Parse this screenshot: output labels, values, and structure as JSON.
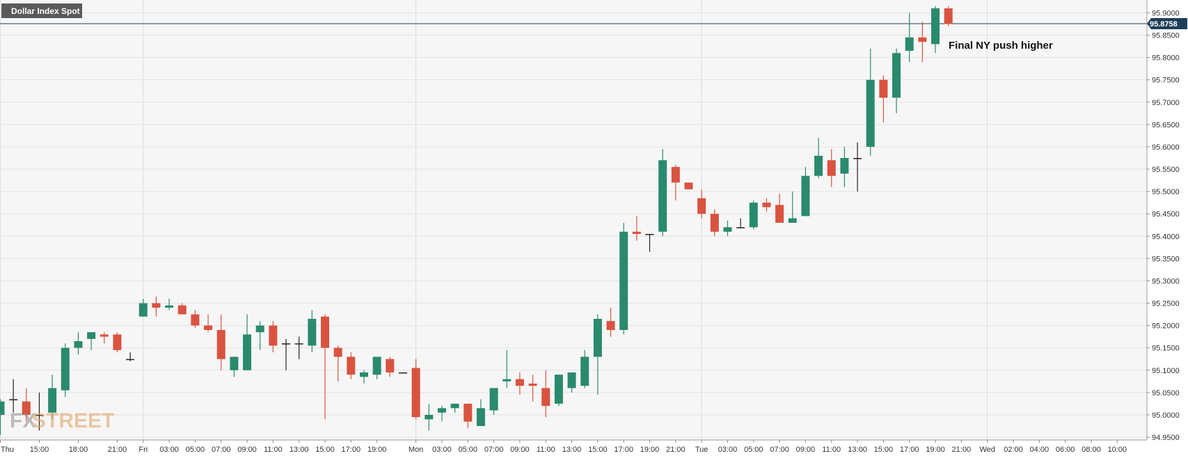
{
  "symbol_label": "Dollar Index Spot",
  "current_price_label": "95.8758",
  "annotation": "Final NY push higher",
  "watermark": {
    "fx": "FX",
    "street": "STREET"
  },
  "colors": {
    "up": "#2a8a6e",
    "down": "#d9533f",
    "doji": "#222222",
    "price_line": "#1e3f5a",
    "panel_bg": "#f6f6f6"
  },
  "chart_data": {
    "type": "candlestick",
    "ylim": [
      94.95,
      95.91
    ],
    "current_price": 95.8758,
    "y_ticks": [
      "94.9500",
      "95.0000",
      "95.0500",
      "95.1000",
      "95.1500",
      "95.2000",
      "95.2500",
      "95.3000",
      "95.3500",
      "95.4000",
      "95.4500",
      "95.5000",
      "95.5500",
      "95.6000",
      "95.6500",
      "95.7000",
      "95.7500",
      "95.8000",
      "95.8500",
      "95.9000"
    ],
    "x_ticks": [
      {
        "label": "Thu",
        "i": 0
      },
      {
        "label": "15:00",
        "i": 3
      },
      {
        "label": "18:00",
        "i": 6
      },
      {
        "label": "21:00",
        "i": 9
      },
      {
        "label": "Fri",
        "i": 11
      },
      {
        "label": "03:00",
        "i": 13
      },
      {
        "label": "05:00",
        "i": 15
      },
      {
        "label": "07:00",
        "i": 17
      },
      {
        "label": "09:00",
        "i": 19
      },
      {
        "label": "11:00",
        "i": 21
      },
      {
        "label": "13:00",
        "i": 23
      },
      {
        "label": "15:00",
        "i": 25
      },
      {
        "label": "17:00",
        "i": 27
      },
      {
        "label": "19:00",
        "i": 29
      },
      {
        "label": "Mon",
        "i": 32
      },
      {
        "label": "03:00",
        "i": 34
      },
      {
        "label": "05:00",
        "i": 36
      },
      {
        "label": "07:00",
        "i": 38
      },
      {
        "label": "09:00",
        "i": 40
      },
      {
        "label": "11:00",
        "i": 42
      },
      {
        "label": "13:00",
        "i": 44
      },
      {
        "label": "15:00",
        "i": 46
      },
      {
        "label": "17:00",
        "i": 48
      },
      {
        "label": "19:00",
        "i": 50
      },
      {
        "label": "21:00",
        "i": 52
      },
      {
        "label": "Tue",
        "i": 54
      },
      {
        "label": "03:00",
        "i": 56
      },
      {
        "label": "05:00",
        "i": 58
      },
      {
        "label": "07:00",
        "i": 60
      },
      {
        "label": "09:00",
        "i": 62
      },
      {
        "label": "11:00",
        "i": 64
      },
      {
        "label": "13:00",
        "i": 66
      },
      {
        "label": "15:00",
        "i": 68
      },
      {
        "label": "17:00",
        "i": 70
      },
      {
        "label": "19:00",
        "i": 72
      },
      {
        "label": "21:00",
        "i": 74
      },
      {
        "label": "Wed",
        "i": 76
      },
      {
        "label": "02:00",
        "i": 78
      },
      {
        "label": "04:00",
        "i": 80
      },
      {
        "label": "06:00",
        "i": 82
      },
      {
        "label": "08:00",
        "i": 84
      },
      {
        "label": "10:00",
        "i": 86
      }
    ],
    "vertical_grid": [
      0,
      11,
      32,
      54,
      76
    ],
    "candles": [
      {
        "o": 95.0,
        "h": 95.035,
        "l": 94.955,
        "c": 95.03
      },
      {
        "o": 95.035,
        "h": 95.08,
        "l": 95.005,
        "c": 95.035
      },
      {
        "o": 95.03,
        "h": 95.06,
        "l": 94.985,
        "c": 95.0
      },
      {
        "o": 95.0,
        "h": 95.05,
        "l": 94.965,
        "c": 95.0
      },
      {
        "o": 95.005,
        "h": 95.09,
        "l": 94.99,
        "c": 95.06
      },
      {
        "o": 95.055,
        "h": 95.16,
        "l": 95.04,
        "c": 95.15
      },
      {
        "o": 95.15,
        "h": 95.185,
        "l": 95.135,
        "c": 95.165
      },
      {
        "o": 95.17,
        "h": 95.185,
        "l": 95.145,
        "c": 95.185
      },
      {
        "o": 95.18,
        "h": 95.185,
        "l": 95.16,
        "c": 95.175
      },
      {
        "o": 95.18,
        "h": 95.185,
        "l": 95.14,
        "c": 95.145
      },
      {
        "o": 95.125,
        "h": 95.14,
        "l": 95.12,
        "c": 95.125
      },
      {
        "o": 95.22,
        "h": 95.26,
        "l": 95.22,
        "c": 95.25
      },
      {
        "o": 95.25,
        "h": 95.265,
        "l": 95.22,
        "c": 95.24
      },
      {
        "o": 95.24,
        "h": 95.26,
        "l": 95.235,
        "c": 95.245
      },
      {
        "o": 95.245,
        "h": 95.25,
        "l": 95.225,
        "c": 95.225
      },
      {
        "o": 95.225,
        "h": 95.235,
        "l": 95.195,
        "c": 95.2
      },
      {
        "o": 95.2,
        "h": 95.225,
        "l": 95.185,
        "c": 95.19
      },
      {
        "o": 95.19,
        "h": 95.225,
        "l": 95.1,
        "c": 95.125
      },
      {
        "o": 95.1,
        "h": 95.13,
        "l": 95.085,
        "c": 95.13
      },
      {
        "o": 95.1,
        "h": 95.225,
        "l": 95.1,
        "c": 95.18
      },
      {
        "o": 95.185,
        "h": 95.21,
        "l": 95.145,
        "c": 95.2
      },
      {
        "o": 95.2,
        "h": 95.21,
        "l": 95.14,
        "c": 95.155
      },
      {
        "o": 95.16,
        "h": 95.17,
        "l": 95.1,
        "c": 95.16
      },
      {
        "o": 95.16,
        "h": 95.175,
        "l": 95.125,
        "c": 95.16
      },
      {
        "o": 95.155,
        "h": 95.235,
        "l": 95.14,
        "c": 95.215
      },
      {
        "o": 95.22,
        "h": 95.225,
        "l": 94.99,
        "c": 95.15
      },
      {
        "o": 95.15,
        "h": 95.155,
        "l": 95.075,
        "c": 95.13
      },
      {
        "o": 95.13,
        "h": 95.14,
        "l": 95.08,
        "c": 95.09
      },
      {
        "o": 95.085,
        "h": 95.1,
        "l": 95.07,
        "c": 95.095
      },
      {
        "o": 95.09,
        "h": 95.13,
        "l": 95.08,
        "c": 95.13
      },
      {
        "o": 95.125,
        "h": 95.13,
        "l": 95.085,
        "c": 95.095
      },
      {
        "o": 95.095,
        "h": 95.095,
        "l": 95.095,
        "c": 95.095
      },
      {
        "o": 95.105,
        "h": 95.125,
        "l": 94.99,
        "c": 94.995
      },
      {
        "o": 94.99,
        "h": 95.025,
        "l": 94.965,
        "c": 95.0
      },
      {
        "o": 95.005,
        "h": 95.02,
        "l": 94.985,
        "c": 95.015
      },
      {
        "o": 95.015,
        "h": 95.025,
        "l": 95.005,
        "c": 95.025
      },
      {
        "o": 95.025,
        "h": 95.025,
        "l": 94.97,
        "c": 94.985
      },
      {
        "o": 94.975,
        "h": 95.035,
        "l": 94.975,
        "c": 95.015
      },
      {
        "o": 95.01,
        "h": 95.06,
        "l": 95.0,
        "c": 95.06
      },
      {
        "o": 95.075,
        "h": 95.145,
        "l": 95.06,
        "c": 95.08
      },
      {
        "o": 95.08,
        "h": 95.095,
        "l": 95.045,
        "c": 95.065
      },
      {
        "o": 95.07,
        "h": 95.09,
        "l": 95.03,
        "c": 95.065
      },
      {
        "o": 95.06,
        "h": 95.1,
        "l": 94.995,
        "c": 95.02
      },
      {
        "o": 95.025,
        "h": 95.09,
        "l": 95.02,
        "c": 95.09
      },
      {
        "o": 95.06,
        "h": 95.095,
        "l": 95.05,
        "c": 95.095
      },
      {
        "o": 95.065,
        "h": 95.145,
        "l": 95.06,
        "c": 95.13
      },
      {
        "o": 95.13,
        "h": 95.225,
        "l": 95.045,
        "c": 95.215
      },
      {
        "o": 95.21,
        "h": 95.24,
        "l": 95.175,
        "c": 95.19
      },
      {
        "o": 95.19,
        "h": 95.43,
        "l": 95.18,
        "c": 95.41
      },
      {
        "o": 95.41,
        "h": 95.445,
        "l": 95.39,
        "c": 95.405
      },
      {
        "o": 95.405,
        "h": 95.405,
        "l": 95.365,
        "c": 95.405
      },
      {
        "o": 95.41,
        "h": 95.595,
        "l": 95.4,
        "c": 95.57
      },
      {
        "o": 95.555,
        "h": 95.56,
        "l": 95.48,
        "c": 95.52
      },
      {
        "o": 95.52,
        "h": 95.52,
        "l": 95.505,
        "c": 95.505
      },
      {
        "o": 95.485,
        "h": 95.505,
        "l": 95.44,
        "c": 95.45
      },
      {
        "o": 95.45,
        "h": 95.46,
        "l": 95.4,
        "c": 95.41
      },
      {
        "o": 95.41,
        "h": 95.435,
        "l": 95.4,
        "c": 95.42
      },
      {
        "o": 95.42,
        "h": 95.44,
        "l": 95.42,
        "c": 95.42
      },
      {
        "o": 95.42,
        "h": 95.48,
        "l": 95.415,
        "c": 95.475
      },
      {
        "o": 95.475,
        "h": 95.485,
        "l": 95.455,
        "c": 95.465
      },
      {
        "o": 95.47,
        "h": 95.495,
        "l": 95.43,
        "c": 95.43
      },
      {
        "o": 95.43,
        "h": 95.5,
        "l": 95.43,
        "c": 95.44
      },
      {
        "o": 95.445,
        "h": 95.555,
        "l": 95.445,
        "c": 95.535
      },
      {
        "o": 95.535,
        "h": 95.62,
        "l": 95.53,
        "c": 95.58
      },
      {
        "o": 95.57,
        "h": 95.595,
        "l": 95.51,
        "c": 95.535
      },
      {
        "o": 95.54,
        "h": 95.6,
        "l": 95.51,
        "c": 95.575
      },
      {
        "o": 95.575,
        "h": 95.61,
        "l": 95.5,
        "c": 95.575
      },
      {
        "o": 95.6,
        "h": 95.82,
        "l": 95.58,
        "c": 95.75
      },
      {
        "o": 95.75,
        "h": 95.76,
        "l": 95.655,
        "c": 95.71
      },
      {
        "o": 95.71,
        "h": 95.82,
        "l": 95.675,
        "c": 95.81
      },
      {
        "o": 95.815,
        "h": 95.9,
        "l": 95.79,
        "c": 95.845
      },
      {
        "o": 95.845,
        "h": 95.88,
        "l": 95.79,
        "c": 95.835
      },
      {
        "o": 95.83,
        "h": 95.915,
        "l": 95.81,
        "c": 95.91
      },
      {
        "o": 95.91,
        "h": 95.915,
        "l": 95.87,
        "c": 95.875
      }
    ]
  }
}
